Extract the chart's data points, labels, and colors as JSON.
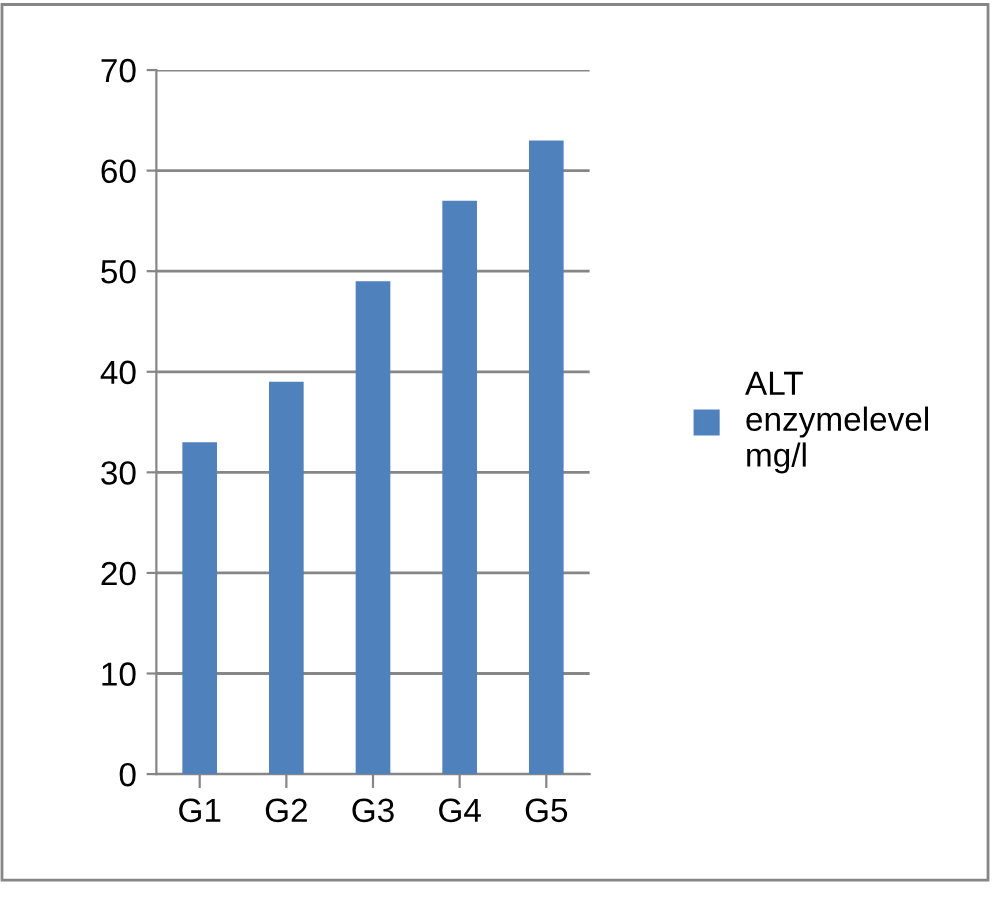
{
  "chart_data": {
    "type": "bar",
    "categories": [
      "G1",
      "G2",
      "G3",
      "G4",
      "G5"
    ],
    "series": [
      {
        "name": "ALT enzymelevel mg/l",
        "color": "#4f81bd",
        "values": [
          33,
          39,
          49,
          57,
          63
        ]
      }
    ],
    "ylim": [
      0,
      70
    ],
    "yticks": [
      0,
      10,
      20,
      30,
      40,
      50,
      60,
      70
    ],
    "grid": "y",
    "legend": "right"
  }
}
